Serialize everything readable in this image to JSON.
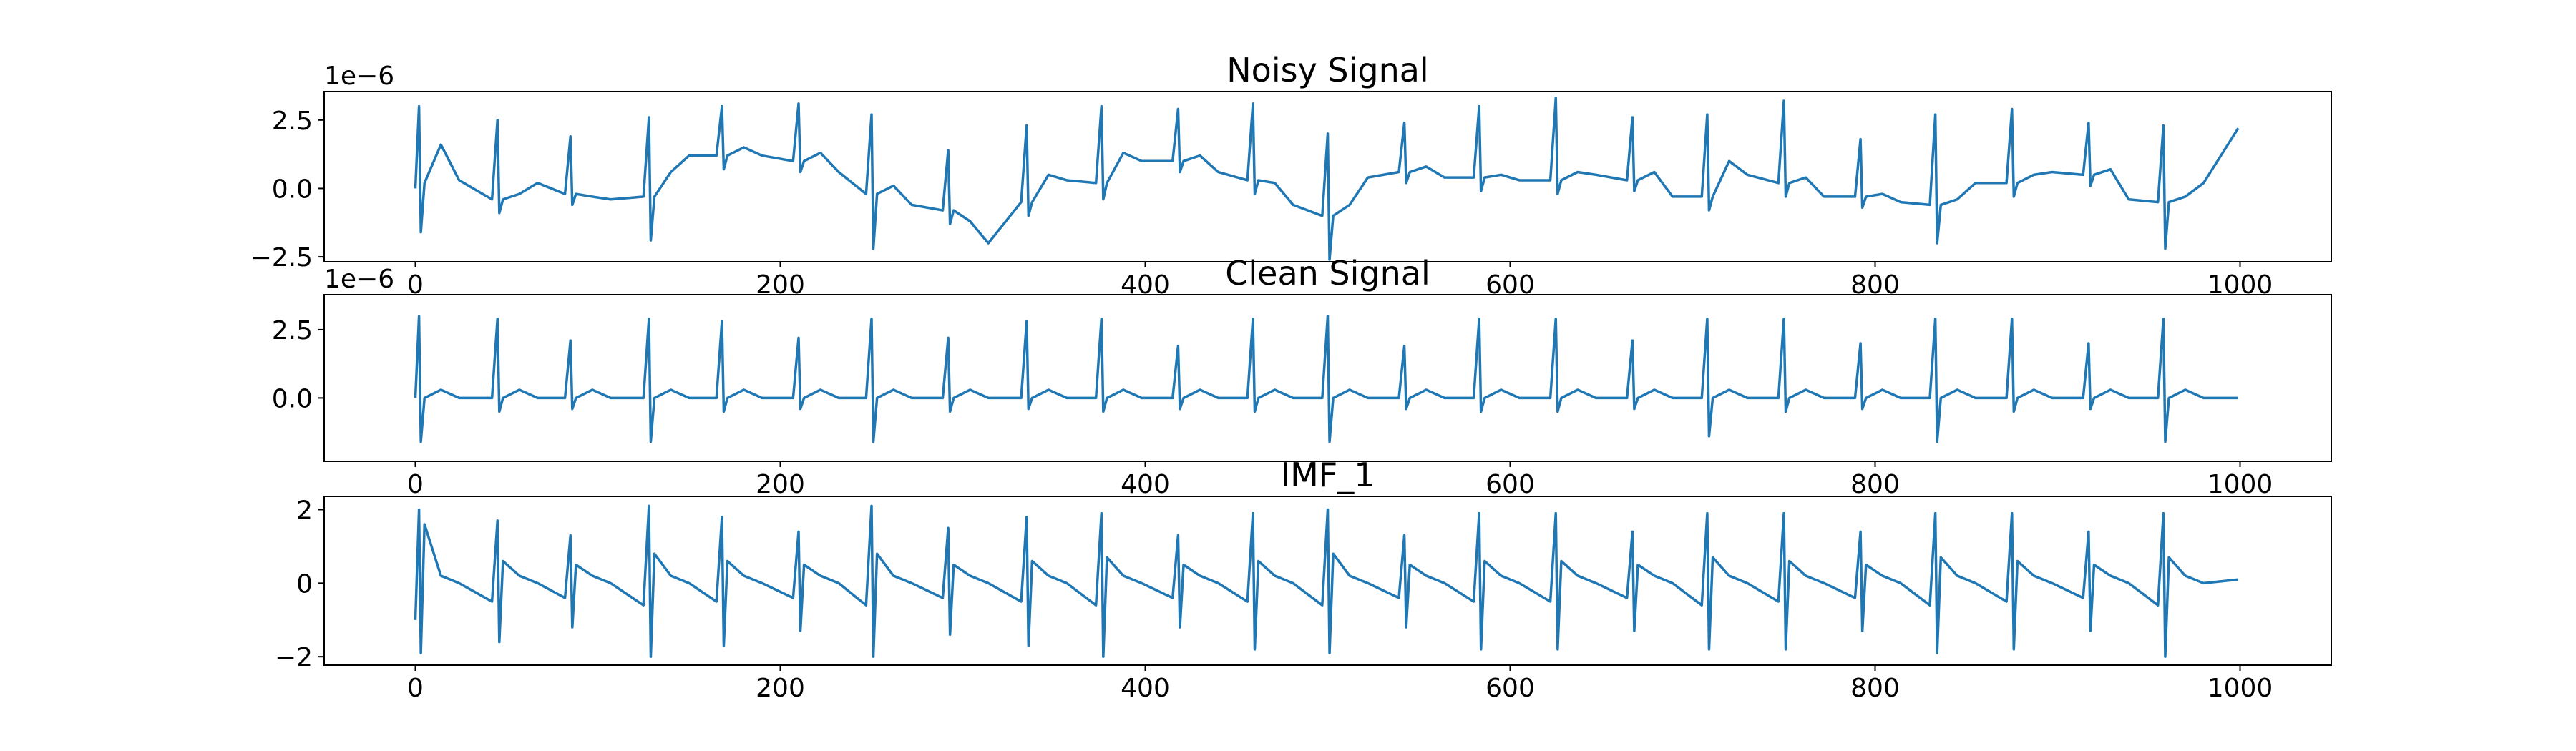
{
  "chart_data": [
    {
      "type": "line",
      "title": "Noisy Signal",
      "offset_label": "1e−6",
      "x": [
        0,
        2,
        3,
        5,
        14,
        24,
        42,
        45,
        46,
        48,
        57,
        67,
        82,
        85,
        86,
        88,
        97,
        107,
        125,
        128,
        129,
        131,
        140,
        150,
        165,
        168,
        169,
        171,
        180,
        190,
        207,
        210,
        211,
        213,
        222,
        232,
        247,
        250,
        251,
        253,
        262,
        272,
        289,
        292,
        293,
        295,
        304,
        314,
        332,
        335,
        336,
        338,
        347,
        357,
        373,
        376,
        377,
        379,
        388,
        398,
        415,
        418,
        419,
        421,
        430,
        440,
        456,
        459,
        460,
        462,
        471,
        481,
        497,
        500,
        501,
        503,
        512,
        522,
        539,
        542,
        543,
        545,
        554,
        564,
        580,
        583,
        584,
        586,
        595,
        605,
        622,
        625,
        626,
        628,
        637,
        647,
        664,
        667,
        668,
        670,
        679,
        689,
        705,
        708,
        709,
        711,
        720,
        730,
        747,
        750,
        751,
        753,
        762,
        772,
        789,
        792,
        793,
        795,
        804,
        814,
        830,
        833,
        834,
        836,
        845,
        855,
        872,
        875,
        876,
        878,
        887,
        897,
        914,
        917,
        918,
        920,
        929,
        939,
        955,
        958,
        959,
        961,
        970,
        980,
        999
      ],
      "series": [
        {
          "name": "Noisy Signal",
          "color": "#1f77b4",
          "values": [
            0,
            3.0,
            -1.6,
            0.2,
            1.6,
            0.3,
            -0.4,
            2.5,
            -0.9,
            -0.4,
            -0.2,
            0.2,
            -0.2,
            1.9,
            -0.6,
            -0.2,
            -0.3,
            -0.4,
            -0.3,
            2.6,
            -1.9,
            -0.3,
            0.6,
            1.2,
            1.2,
            3.0,
            0.7,
            1.2,
            1.5,
            1.2,
            1.0,
            3.1,
            0.6,
            1.0,
            1.3,
            0.6,
            -0.2,
            2.7,
            -2.2,
            -0.2,
            0.1,
            -0.6,
            -0.8,
            1.4,
            -1.3,
            -0.8,
            -1.2,
            -2.0,
            -0.5,
            2.3,
            -1.0,
            -0.5,
            0.5,
            0.3,
            0.2,
            3.0,
            -0.4,
            0.2,
            1.3,
            1.0,
            1.0,
            2.9,
            0.6,
            1.0,
            1.2,
            0.6,
            0.3,
            3.1,
            -0.2,
            0.3,
            0.2,
            -0.6,
            -1.0,
            2.0,
            -2.6,
            -1.0,
            -0.6,
            0.4,
            0.6,
            2.4,
            0.2,
            0.6,
            0.8,
            0.4,
            0.4,
            3.0,
            -0.1,
            0.4,
            0.5,
            0.3,
            0.3,
            3.3,
            -0.2,
            0.3,
            0.6,
            0.5,
            0.3,
            2.6,
            -0.1,
            0.3,
            0.6,
            -0.3,
            -0.3,
            2.7,
            -0.8,
            -0.3,
            1.0,
            0.5,
            0.2,
            3.2,
            -0.3,
            0.2,
            0.4,
            -0.3,
            -0.3,
            1.8,
            -0.7,
            -0.3,
            -0.2,
            -0.5,
            -0.6,
            2.7,
            -2.0,
            -0.6,
            -0.4,
            0.2,
            0.2,
            2.9,
            -0.3,
            0.2,
            0.5,
            0.6,
            0.5,
            2.4,
            0.1,
            0.5,
            0.7,
            -0.4,
            -0.5,
            2.3,
            -2.2,
            -0.5,
            -0.3,
            0.2,
            2.2
          ]
        }
      ],
      "xlim": [
        -50,
        1050
      ],
      "xticks": [
        0,
        200,
        400,
        600,
        800,
        1000
      ],
      "ylim": [
        -2.68,
        3.54
      ],
      "yticks": [
        {
          "value": -2.5,
          "label": "−2.5"
        },
        {
          "value": 0,
          "label": "0.0"
        },
        2.5
      ]
    },
    {
      "type": "line",
      "title": "Clean Signal",
      "offset_label": "1e−6",
      "x": [
        0,
        2,
        3,
        5,
        14,
        24,
        42,
        45,
        46,
        48,
        57,
        67,
        82,
        85,
        86,
        88,
        97,
        107,
        125,
        128,
        129,
        131,
        140,
        150,
        165,
        168,
        169,
        171,
        180,
        190,
        207,
        210,
        211,
        213,
        222,
        232,
        247,
        250,
        251,
        253,
        262,
        272,
        289,
        292,
        293,
        295,
        304,
        314,
        332,
        335,
        336,
        338,
        347,
        357,
        373,
        376,
        377,
        379,
        388,
        398,
        415,
        418,
        419,
        421,
        430,
        440,
        456,
        459,
        460,
        462,
        471,
        481,
        497,
        500,
        501,
        503,
        512,
        522,
        539,
        542,
        543,
        545,
        554,
        564,
        580,
        583,
        584,
        586,
        595,
        605,
        622,
        625,
        626,
        628,
        637,
        647,
        664,
        667,
        668,
        670,
        679,
        689,
        705,
        708,
        709,
        711,
        720,
        730,
        747,
        750,
        751,
        753,
        762,
        772,
        789,
        792,
        793,
        795,
        804,
        814,
        830,
        833,
        834,
        836,
        845,
        855,
        872,
        875,
        876,
        878,
        887,
        897,
        914,
        917,
        918,
        920,
        929,
        939,
        955,
        958,
        959,
        961,
        970,
        980,
        999
      ],
      "series": [
        {
          "name": "Clean Signal",
          "color": "#1f77b4",
          "values": [
            0,
            3.0,
            -1.6,
            0,
            0.3,
            0,
            0,
            2.9,
            -0.5,
            0,
            0.3,
            0,
            0,
            2.1,
            -0.4,
            0,
            0.3,
            0,
            0,
            2.9,
            -1.6,
            0,
            0.3,
            0,
            0,
            2.8,
            -0.5,
            0,
            0.3,
            0,
            0,
            2.2,
            -0.4,
            0,
            0.3,
            0,
            0,
            2.9,
            -1.6,
            0,
            0.3,
            0,
            0,
            2.2,
            -0.5,
            0,
            0.3,
            0,
            0,
            2.8,
            -0.4,
            0,
            0.3,
            0,
            0,
            2.9,
            -0.5,
            0,
            0.3,
            0,
            0,
            1.9,
            -0.4,
            0,
            0.3,
            0,
            0,
            2.9,
            -0.5,
            0,
            0.3,
            0,
            0,
            3.0,
            -1.6,
            0,
            0.3,
            0,
            0,
            1.9,
            -0.4,
            0,
            0.3,
            0,
            0,
            2.9,
            -0.5,
            0,
            0.3,
            0,
            0,
            2.9,
            -0.5,
            0,
            0.3,
            0,
            0,
            2.1,
            -0.4,
            0,
            0.3,
            0,
            0,
            2.9,
            -1.4,
            0,
            0.3,
            0,
            0,
            2.9,
            -0.5,
            0,
            0.3,
            0,
            0,
            2.0,
            -0.4,
            0,
            0.3,
            0,
            0,
            2.9,
            -1.6,
            0,
            0.3,
            0,
            0,
            2.9,
            -0.5,
            0,
            0.3,
            0,
            0,
            2.0,
            -0.4,
            0,
            0.3,
            0,
            0,
            2.9,
            -1.6,
            0,
            0.3,
            0,
            0
          ]
        }
      ],
      "xlim": [
        -50,
        1050
      ],
      "xticks": [
        0,
        200,
        400,
        600,
        800,
        1000
      ],
      "ylim": [
        -2.32,
        3.78
      ],
      "yticks": [
        {
          "value": 0,
          "label": "0.0"
        },
        2.5
      ]
    },
    {
      "type": "line",
      "title": "IMF_1",
      "x": [
        0,
        2,
        3,
        5,
        14,
        24,
        42,
        45,
        46,
        48,
        57,
        67,
        82,
        85,
        86,
        88,
        97,
        107,
        125,
        128,
        129,
        131,
        140,
        150,
        165,
        168,
        169,
        171,
        180,
        190,
        207,
        210,
        211,
        213,
        222,
        232,
        247,
        250,
        251,
        253,
        262,
        272,
        289,
        292,
        293,
        295,
        304,
        314,
        332,
        335,
        336,
        338,
        347,
        357,
        373,
        376,
        377,
        379,
        388,
        398,
        415,
        418,
        419,
        421,
        430,
        440,
        456,
        459,
        460,
        462,
        471,
        481,
        497,
        500,
        501,
        503,
        512,
        522,
        539,
        542,
        543,
        545,
        554,
        564,
        580,
        583,
        584,
        586,
        595,
        605,
        622,
        625,
        626,
        628,
        637,
        647,
        664,
        667,
        668,
        670,
        679,
        689,
        705,
        708,
        709,
        711,
        720,
        730,
        747,
        750,
        751,
        753,
        762,
        772,
        789,
        792,
        793,
        795,
        804,
        814,
        830,
        833,
        834,
        836,
        845,
        855,
        872,
        875,
        876,
        878,
        887,
        897,
        914,
        917,
        918,
        920,
        929,
        939,
        955,
        958,
        959,
        961,
        970,
        980,
        999
      ],
      "series": [
        {
          "name": "IMF_1",
          "color": "#1f77b4",
          "values": [
            -1.0,
            2.0,
            -1.9,
            1.6,
            0.2,
            0,
            -0.5,
            1.7,
            -1.6,
            0.6,
            0.2,
            0,
            -0.4,
            1.3,
            -1.2,
            0.5,
            0.2,
            0,
            -0.6,
            2.1,
            -2.0,
            0.8,
            0.2,
            0,
            -0.5,
            1.8,
            -1.7,
            0.6,
            0.2,
            0,
            -0.4,
            1.4,
            -1.3,
            0.5,
            0.2,
            0,
            -0.6,
            2.1,
            -2.0,
            0.8,
            0.2,
            0,
            -0.4,
            1.5,
            -1.4,
            0.5,
            0.2,
            0,
            -0.5,
            1.8,
            -1.7,
            0.6,
            0.2,
            0,
            -0.6,
            1.9,
            -2.0,
            0.7,
            0.2,
            0,
            -0.4,
            1.3,
            -1.2,
            0.5,
            0.2,
            0,
            -0.5,
            1.9,
            -1.8,
            0.6,
            0.2,
            0,
            -0.6,
            2.0,
            -1.9,
            0.8,
            0.2,
            0,
            -0.4,
            1.3,
            -1.2,
            0.5,
            0.2,
            0,
            -0.5,
            1.9,
            -1.8,
            0.6,
            0.2,
            0,
            -0.5,
            1.9,
            -1.8,
            0.6,
            0.2,
            0,
            -0.4,
            1.4,
            -1.3,
            0.5,
            0.2,
            0,
            -0.6,
            1.9,
            -1.8,
            0.7,
            0.2,
            0,
            -0.5,
            1.9,
            -1.8,
            0.6,
            0.2,
            0,
            -0.4,
            1.4,
            -1.3,
            0.5,
            0.2,
            0,
            -0.6,
            1.9,
            -1.9,
            0.7,
            0.2,
            0,
            -0.5,
            1.9,
            -1.8,
            0.6,
            0.2,
            0,
            -0.4,
            1.4,
            -1.3,
            0.5,
            0.2,
            0,
            -0.6,
            1.9,
            -2.0,
            0.7,
            0.2,
            0,
            0.1
          ]
        }
      ],
      "xlim": [
        -50,
        1050
      ],
      "xticks": [
        0,
        200,
        400,
        600,
        800,
        1000
      ],
      "ylim": [
        -2.23,
        2.36
      ],
      "yticks": [
        {
          "value": -2,
          "label": "−2"
        },
        0,
        2
      ]
    }
  ]
}
